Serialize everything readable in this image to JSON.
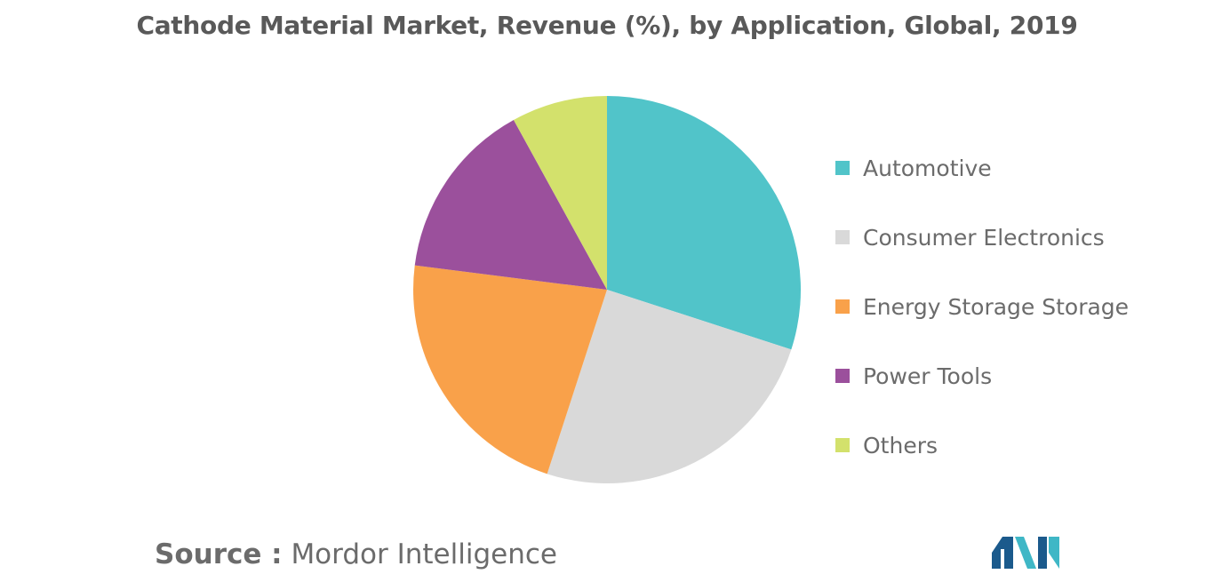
{
  "chart_data": {
    "type": "pie",
    "title": "Cathode Material Market, Revenue (%), by Application, Global, 2019",
    "categories": [
      "Automotive",
      "Consumer Electronics",
      "Energy Storage Storage",
      "Power Tools",
      "Others"
    ],
    "values": [
      30,
      25,
      22,
      15,
      8
    ],
    "colors": [
      "#51c4c9",
      "#d9d9d9",
      "#f9a14a",
      "#9b509c",
      "#d3e16c"
    ],
    "legend_position": "right",
    "start_angle_deg": 0,
    "direction": "clockwise"
  },
  "source": {
    "prefix": "Source :",
    "text": "Mordor Intelligence"
  },
  "logo": {
    "icon": "mordor-intelligence-logo",
    "colors": [
      "#1b5a8c",
      "#3fb7c6"
    ]
  }
}
